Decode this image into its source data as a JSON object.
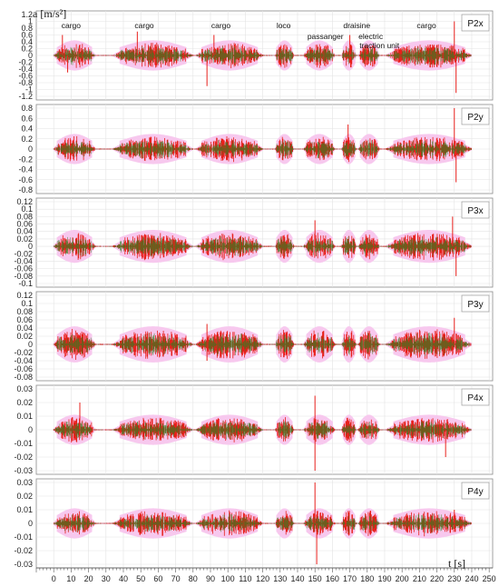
{
  "chart_data": {
    "type": "line",
    "y_axis_label": "a [m/s²]",
    "x_axis_label": "t [s]",
    "x_ticks": [
      0,
      10,
      20,
      30,
      40,
      50,
      60,
      70,
      80,
      90,
      100,
      110,
      120,
      130,
      140,
      150,
      160,
      170,
      180,
      190,
      200,
      210,
      220,
      230,
      240,
      250
    ],
    "xlim": [
      -10,
      252
    ],
    "annotations": [
      {
        "text": "cargo",
        "t": 10
      },
      {
        "text": "cargo",
        "t": 52
      },
      {
        "text": "cargo",
        "t": 96
      },
      {
        "text": "loco",
        "t": 132
      },
      {
        "text": "passanger",
        "t": 156
      },
      {
        "text": "draisine",
        "t": 174
      },
      {
        "text": "electric",
        "t": 182
      },
      {
        "text": "traction unit",
        "t": 187
      },
      {
        "text": "cargo",
        "t": 214
      }
    ],
    "events": [
      {
        "name": "cargo",
        "t_start": 2,
        "t_end": 22
      },
      {
        "name": "cargo",
        "t_start": 38,
        "t_end": 76
      },
      {
        "name": "cargo",
        "t_start": 85,
        "t_end": 117
      },
      {
        "name": "loco",
        "t_start": 128,
        "t_end": 137
      },
      {
        "name": "passanger",
        "t_start": 145,
        "t_end": 160
      },
      {
        "name": "draisine",
        "t_start": 166,
        "t_end": 173
      },
      {
        "name": "electric traction unit",
        "t_start": 176,
        "t_end": 186
      },
      {
        "name": "cargo",
        "t_start": 195,
        "t_end": 236
      }
    ],
    "panels": [
      {
        "label": "P2x",
        "ylim": [
          -1.2,
          1.2
        ],
        "yticks": [
          "1.2",
          "1",
          "0.8",
          "0.6",
          "0.4",
          "0.2",
          "0",
          "-0.2",
          "-0.4",
          "-0.6",
          "-0.8",
          "-1",
          "-1.2"
        ],
        "ytick_values": [
          1.2,
          1,
          0.8,
          0.6,
          0.4,
          0.2,
          0,
          -0.2,
          -0.4,
          -0.6,
          -0.8,
          -1,
          -1.2
        ],
        "peaks": [
          {
            "t": 5,
            "a": 0.6
          },
          {
            "t": 8,
            "a": -0.5
          },
          {
            "t": 48,
            "a": 0.7
          },
          {
            "t": 88,
            "a": -0.9
          },
          {
            "t": 92,
            "a": 0.6
          },
          {
            "t": 170,
            "a": 0.6
          },
          {
            "t": 230,
            "a": 1.0
          },
          {
            "t": 231,
            "a": -1.1
          }
        ]
      },
      {
        "label": "P2y",
        "ylim": [
          -0.8,
          0.8
        ],
        "yticks": [
          "0.8",
          "0.6",
          "0.4",
          "0.2",
          "0",
          "-0.2",
          "-0.4",
          "-0.6",
          "-0.8"
        ],
        "ytick_values": [
          0.8,
          0.6,
          0.4,
          0.2,
          0,
          -0.2,
          -0.4,
          -0.6,
          -0.8
        ],
        "peaks": [
          {
            "t": 169,
            "a": 0.48
          },
          {
            "t": 230,
            "a": 0.8
          },
          {
            "t": 231,
            "a": -0.65
          }
        ]
      },
      {
        "label": "P3x",
        "ylim": [
          -0.1,
          0.12
        ],
        "yticks": [
          "0.12",
          "0.1",
          "0.08",
          "0.06",
          "0.04",
          "0.02",
          "0",
          "-0.02",
          "-0.04",
          "-0.06",
          "-0.08",
          "-0.1"
        ],
        "ytick_values": [
          0.12,
          0.1,
          0.08,
          0.06,
          0.04,
          0.02,
          0,
          -0.02,
          -0.04,
          -0.06,
          -0.08,
          -0.1
        ],
        "peaks": [
          {
            "t": 150,
            "a": 0.07
          },
          {
            "t": 229,
            "a": 0.08
          },
          {
            "t": 231,
            "a": -0.08
          }
        ]
      },
      {
        "label": "P3y",
        "ylim": [
          -0.08,
          0.12
        ],
        "yticks": [
          "0.12",
          "0.1",
          "0.08",
          "0.06",
          "0.04",
          "0.02",
          "0",
          "-0.02",
          "-0.04",
          "-0.06",
          "-0.08"
        ],
        "ytick_values": [
          0.12,
          0.1,
          0.08,
          0.06,
          0.04,
          0.02,
          0,
          -0.02,
          -0.04,
          -0.06,
          -0.08
        ],
        "peaks": [
          {
            "t": 88,
            "a": 0.05
          },
          {
            "t": 88,
            "a": -0.04
          },
          {
            "t": 230,
            "a": 0.065
          }
        ]
      },
      {
        "label": "P4x",
        "ylim": [
          -0.03,
          0.03
        ],
        "yticks": [
          "0.03",
          "0.02",
          "0.01",
          "0",
          "-0.01",
          "-0.02",
          "-0.03"
        ],
        "ytick_values": [
          0.03,
          0.02,
          0.01,
          0,
          -0.01,
          -0.02,
          -0.03
        ],
        "peaks": [
          {
            "t": 15,
            "a": 0.02
          },
          {
            "t": 150,
            "a": 0.025
          },
          {
            "t": 150,
            "a": -0.03
          },
          {
            "t": 225,
            "a": -0.02
          }
        ]
      },
      {
        "label": "P4y",
        "ylim": [
          -0.03,
          0.03
        ],
        "yticks": [
          "0.03",
          "0.02",
          "0.01",
          "0",
          "-0.01",
          "-0.02",
          "-0.03"
        ],
        "ytick_values": [
          0.03,
          0.02,
          0.01,
          0,
          -0.01,
          -0.02,
          -0.03
        ],
        "peaks": [
          {
            "t": 150,
            "a": 0.03
          },
          {
            "t": 151,
            "a": -0.03
          },
          {
            "t": 230,
            "a": 0.01
          }
        ]
      }
    ],
    "colors": {
      "signal_primary": "#e8201c",
      "signal_secondary": "#2e7d1f",
      "grid": "#e3e3e3",
      "frame": "#8a8a8a"
    }
  }
}
